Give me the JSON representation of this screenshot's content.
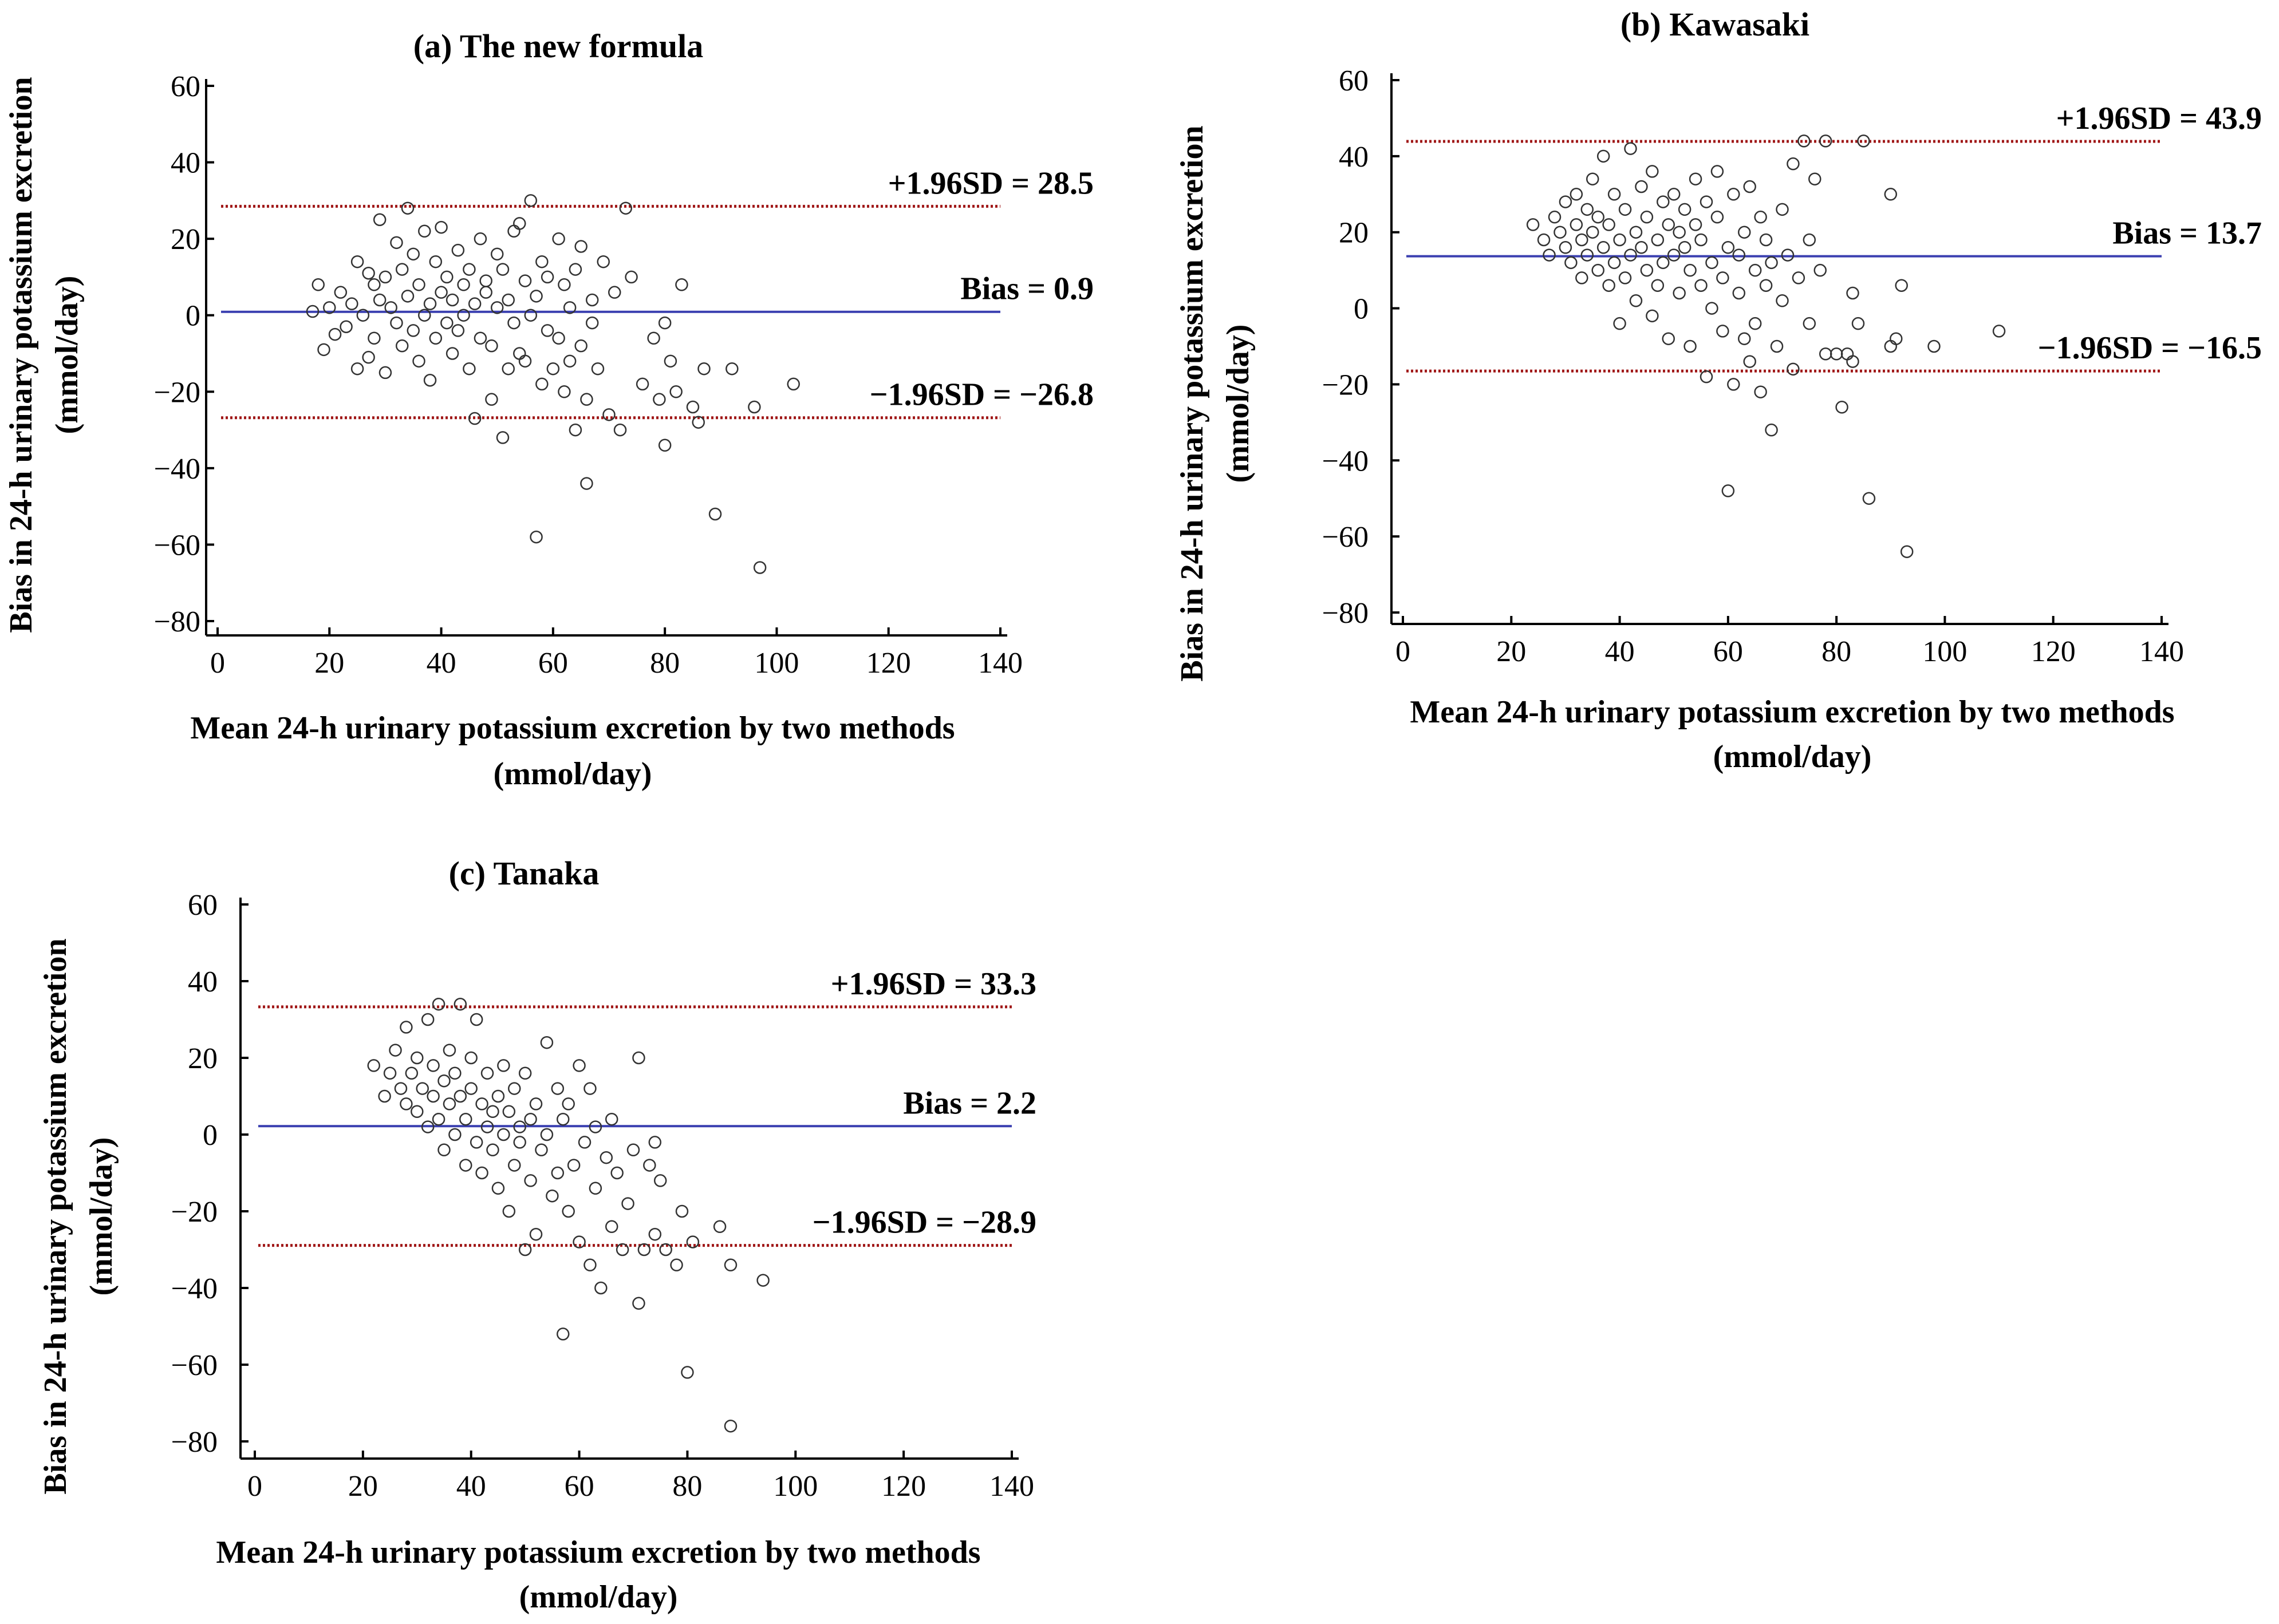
{
  "figure": {
    "x_axis_label_line1": "Mean 24-h urinary potassium excretion by two methods",
    "x_axis_label_line2": "(mmol/day)",
    "y_axis_label_line1": "Bias in 24-h urinary potassium excretion",
    "y_axis_label_line2": "(mmol/day)"
  },
  "colors": {
    "bias_line": "#3a3fb0",
    "limit_line": "#a01818",
    "points": "#333333"
  },
  "chart_data": [
    {
      "id": "a",
      "type": "scatter",
      "title": "(a) The new formula",
      "xlabel": "Mean 24-h urinary potassium excretion by two methods (mmol/day)",
      "ylabel": "Bias in 24-h urinary potassium excretion (mmol/day)",
      "xlim": [
        0,
        140
      ],
      "ylim": [
        -80,
        60
      ],
      "xticks": [
        0,
        20,
        40,
        60,
        80,
        100,
        120,
        140
      ],
      "yticks": [
        60,
        40,
        20,
        0,
        -20,
        -40,
        -60,
        -80
      ],
      "bias": {
        "label": "Bias =",
        "value": 0.9,
        "text": "0.9"
      },
      "upper_limit": {
        "label": "+1.96SD =",
        "value": 28.5,
        "text": "28.5"
      },
      "lower_limit": {
        "label": "−1.96SD =",
        "value": -26.8,
        "text": "−26.8"
      },
      "points_note": "approximate, read off the scatter",
      "points": [
        [
          17,
          1
        ],
        [
          18,
          8
        ],
        [
          19,
          -9
        ],
        [
          20,
          2
        ],
        [
          21,
          -5
        ],
        [
          22,
          6
        ],
        [
          23,
          -3
        ],
        [
          24,
          3
        ],
        [
          25,
          -14
        ],
        [
          25,
          14
        ],
        [
          26,
          0
        ],
        [
          27,
          -11
        ],
        [
          27,
          11
        ],
        [
          28,
          8
        ],
        [
          28,
          -6
        ],
        [
          29,
          25
        ],
        [
          29,
          4
        ],
        [
          30,
          -15
        ],
        [
          30,
          10
        ],
        [
          31,
          2
        ],
        [
          32,
          -2
        ],
        [
          32,
          19
        ],
        [
          33,
          12
        ],
        [
          33,
          -8
        ],
        [
          34,
          28
        ],
        [
          34,
          5
        ],
        [
          35,
          -4
        ],
        [
          35,
          16
        ],
        [
          36,
          8
        ],
        [
          36,
          -12
        ],
        [
          37,
          22
        ],
        [
          37,
          0
        ],
        [
          38,
          3
        ],
        [
          38,
          -17
        ],
        [
          39,
          14
        ],
        [
          39,
          -6
        ],
        [
          40,
          6
        ],
        [
          40,
          23
        ],
        [
          41,
          -2
        ],
        [
          41,
          10
        ],
        [
          42,
          -10
        ],
        [
          42,
          4
        ],
        [
          43,
          17
        ],
        [
          43,
          -4
        ],
        [
          44,
          0
        ],
        [
          44,
          8
        ],
        [
          45,
          12
        ],
        [
          45,
          -14
        ],
        [
          46,
          3
        ],
        [
          46,
          -27
        ],
        [
          47,
          20
        ],
        [
          47,
          -6
        ],
        [
          48,
          6
        ],
        [
          48,
          9
        ],
        [
          49,
          -22
        ],
        [
          49,
          -8
        ],
        [
          50,
          16
        ],
        [
          50,
          2
        ],
        [
          51,
          -32
        ],
        [
          51,
          12
        ],
        [
          52,
          4
        ],
        [
          52,
          -14
        ],
        [
          53,
          22
        ],
        [
          53,
          -2
        ],
        [
          54,
          24
        ],
        [
          54,
          -10
        ],
        [
          55,
          9
        ],
        [
          55,
          -12
        ],
        [
          56,
          30
        ],
        [
          56,
          0
        ],
        [
          57,
          -58
        ],
        [
          57,
          5
        ],
        [
          58,
          14
        ],
        [
          58,
          -18
        ],
        [
          59,
          -4
        ],
        [
          59,
          10
        ],
        [
          60,
          -14
        ],
        [
          61,
          20
        ],
        [
          61,
          -6
        ],
        [
          62,
          8
        ],
        [
          62,
          -20
        ],
        [
          63,
          2
        ],
        [
          63,
          -12
        ],
        [
          64,
          12
        ],
        [
          64,
          -30
        ],
        [
          65,
          -8
        ],
        [
          65,
          18
        ],
        [
          66,
          -44
        ],
        [
          66,
          -22
        ],
        [
          67,
          -2
        ],
        [
          67,
          4
        ],
        [
          68,
          -14
        ],
        [
          69,
          14
        ],
        [
          70,
          -26
        ],
        [
          71,
          6
        ],
        [
          72,
          -30
        ],
        [
          73,
          28
        ],
        [
          74,
          10
        ],
        [
          76,
          -18
        ],
        [
          78,
          -6
        ],
        [
          79,
          -22
        ],
        [
          80,
          -34
        ],
        [
          80,
          -2
        ],
        [
          81,
          -12
        ],
        [
          82,
          -20
        ],
        [
          83,
          8
        ],
        [
          85,
          -24
        ],
        [
          86,
          -28
        ],
        [
          87,
          -14
        ],
        [
          89,
          -52
        ],
        [
          92,
          -14
        ],
        [
          96,
          -24
        ],
        [
          97,
          -66
        ],
        [
          103,
          -18
        ]
      ]
    },
    {
      "id": "b",
      "type": "scatter",
      "title": "(b) Kawasaki",
      "xlabel": "Mean 24-h urinary potassium excretion by two methods (mmol/day)",
      "ylabel": "Bias in 24-h urinary potassium excretion (mmol/day)",
      "xlim": [
        0,
        140
      ],
      "ylim": [
        -80,
        60
      ],
      "xticks": [
        0,
        20,
        40,
        60,
        80,
        100,
        120,
        140
      ],
      "yticks": [
        60,
        40,
        20,
        0,
        -20,
        -40,
        -60,
        -80
      ],
      "bias": {
        "label": "Bias =",
        "value": 13.7,
        "text": "13.7"
      },
      "upper_limit": {
        "label": "+1.96SD =",
        "value": 43.9,
        "text": "43.9"
      },
      "lower_limit": {
        "label": "−1.96SD =",
        "value": -16.5,
        "text": "−16.5"
      },
      "points_note": "approximate, read off the scatter",
      "points": [
        [
          24,
          22
        ],
        [
          26,
          18
        ],
        [
          27,
          14
        ],
        [
          28,
          24
        ],
        [
          29,
          20
        ],
        [
          30,
          16
        ],
        [
          30,
          28
        ],
        [
          31,
          12
        ],
        [
          32,
          22
        ],
        [
          32,
          30
        ],
        [
          33,
          18
        ],
        [
          33,
          8
        ],
        [
          34,
          26
        ],
        [
          34,
          14
        ],
        [
          35,
          34
        ],
        [
          35,
          20
        ],
        [
          36,
          10
        ],
        [
          36,
          24
        ],
        [
          37,
          16
        ],
        [
          37,
          40
        ],
        [
          38,
          6
        ],
        [
          38,
          22
        ],
        [
          39,
          30
        ],
        [
          39,
          12
        ],
        [
          40,
          18
        ],
        [
          40,
          -4
        ],
        [
          41,
          26
        ],
        [
          41,
          8
        ],
        [
          42,
          14
        ],
        [
          42,
          42
        ],
        [
          43,
          20
        ],
        [
          43,
          2
        ],
        [
          44,
          32
        ],
        [
          44,
          16
        ],
        [
          45,
          10
        ],
        [
          45,
          24
        ],
        [
          46,
          -2
        ],
        [
          46,
          36
        ],
        [
          47,
          18
        ],
        [
          47,
          6
        ],
        [
          48,
          28
        ],
        [
          48,
          12
        ],
        [
          49,
          22
        ],
        [
          49,
          -8
        ],
        [
          50,
          14
        ],
        [
          50,
          30
        ],
        [
          51,
          4
        ],
        [
          51,
          20
        ],
        [
          52,
          16
        ],
        [
          52,
          26
        ],
        [
          53,
          10
        ],
        [
          53,
          -10
        ],
        [
          54,
          22
        ],
        [
          54,
          34
        ],
        [
          55,
          6
        ],
        [
          55,
          18
        ],
        [
          56,
          -18
        ],
        [
          56,
          28
        ],
        [
          57,
          12
        ],
        [
          57,
          0
        ],
        [
          58,
          24
        ],
        [
          58,
          36
        ],
        [
          59,
          8
        ],
        [
          59,
          -6
        ],
        [
          60,
          16
        ],
        [
          60,
          -48
        ],
        [
          61,
          30
        ],
        [
          61,
          -20
        ],
        [
          62,
          14
        ],
        [
          62,
          4
        ],
        [
          63,
          20
        ],
        [
          63,
          -8
        ],
        [
          64,
          32
        ],
        [
          64,
          -14
        ],
        [
          65,
          10
        ],
        [
          65,
          -4
        ],
        [
          66,
          24
        ],
        [
          66,
          -22
        ],
        [
          67,
          6
        ],
        [
          67,
          18
        ],
        [
          68,
          -32
        ],
        [
          68,
          12
        ],
        [
          69,
          -10
        ],
        [
          70,
          26
        ],
        [
          70,
          2
        ],
        [
          71,
          14
        ],
        [
          72,
          -16
        ],
        [
          72,
          38
        ],
        [
          73,
          8
        ],
        [
          74,
          44
        ],
        [
          75,
          -4
        ],
        [
          75,
          18
        ],
        [
          76,
          34
        ],
        [
          77,
          10
        ],
        [
          78,
          -12
        ],
        [
          78,
          44
        ],
        [
          80,
          -12
        ],
        [
          81,
          -26
        ],
        [
          82,
          -12
        ],
        [
          83,
          4
        ],
        [
          83,
          -14
        ],
        [
          84,
          -4
        ],
        [
          85,
          44
        ],
        [
          86,
          -50
        ],
        [
          90,
          -10
        ],
        [
          90,
          30
        ],
        [
          91,
          -8
        ],
        [
          92,
          6
        ],
        [
          93,
          -64
        ],
        [
          98,
          -10
        ],
        [
          110,
          -6
        ]
      ]
    },
    {
      "id": "c",
      "type": "scatter",
      "title": "(c) Tanaka",
      "xlabel": "Mean 24-h urinary potassium excretion by two methods (mmol/day)",
      "ylabel": "Bias in 24-h urinary potassium excretion (mmol/day)",
      "xlim": [
        0,
        140
      ],
      "ylim": [
        -80,
        60
      ],
      "xticks": [
        0,
        20,
        40,
        60,
        80,
        100,
        120,
        140
      ],
      "yticks": [
        60,
        40,
        20,
        0,
        -20,
        -40,
        -60,
        -80
      ],
      "bias": {
        "label": "Bias =",
        "value": 2.2,
        "text": "2.2"
      },
      "upper_limit": {
        "label": "+1.96SD =",
        "value": 33.3,
        "text": "33.3"
      },
      "lower_limit": {
        "label": "−1.96SD =",
        "value": -28.9,
        "text": "−28.9"
      },
      "points_note": "approximate, read off the scatter",
      "points": [
        [
          22,
          18
        ],
        [
          24,
          10
        ],
        [
          25,
          16
        ],
        [
          26,
          22
        ],
        [
          27,
          12
        ],
        [
          28,
          8
        ],
        [
          28,
          28
        ],
        [
          29,
          16
        ],
        [
          30,
          20
        ],
        [
          30,
          6
        ],
        [
          31,
          12
        ],
        [
          32,
          30
        ],
        [
          32,
          2
        ],
        [
          33,
          18
        ],
        [
          33,
          10
        ],
        [
          34,
          34
        ],
        [
          34,
          4
        ],
        [
          35,
          14
        ],
        [
          35,
          -4
        ],
        [
          36,
          22
        ],
        [
          36,
          8
        ],
        [
          37,
          0
        ],
        [
          37,
          16
        ],
        [
          38,
          34
        ],
        [
          38,
          10
        ],
        [
          39,
          -8
        ],
        [
          39,
          4
        ],
        [
          40,
          20
        ],
        [
          40,
          12
        ],
        [
          41,
          -2
        ],
        [
          41,
          30
        ],
        [
          42,
          8
        ],
        [
          42,
          -10
        ],
        [
          43,
          16
        ],
        [
          43,
          2
        ],
        [
          44,
          6
        ],
        [
          44,
          -4
        ],
        [
          45,
          10
        ],
        [
          45,
          -14
        ],
        [
          46,
          0
        ],
        [
          46,
          18
        ],
        [
          47,
          6
        ],
        [
          47,
          -20
        ],
        [
          48,
          12
        ],
        [
          48,
          -8
        ],
        [
          49,
          2
        ],
        [
          49,
          -2
        ],
        [
          50,
          16
        ],
        [
          50,
          -30
        ],
        [
          51,
          4
        ],
        [
          51,
          -12
        ],
        [
          52,
          8
        ],
        [
          52,
          -26
        ],
        [
          53,
          -4
        ],
        [
          54,
          24
        ],
        [
          54,
          0
        ],
        [
          55,
          -16
        ],
        [
          56,
          12
        ],
        [
          56,
          -10
        ],
        [
          57,
          -52
        ],
        [
          57,
          4
        ],
        [
          58,
          -20
        ],
        [
          58,
          8
        ],
        [
          59,
          -8
        ],
        [
          60,
          18
        ],
        [
          60,
          -28
        ],
        [
          61,
          -2
        ],
        [
          62,
          12
        ],
        [
          62,
          -34
        ],
        [
          63,
          -14
        ],
        [
          63,
          2
        ],
        [
          64,
          -40
        ],
        [
          65,
          -6
        ],
        [
          66,
          -24
        ],
        [
          66,
          4
        ],
        [
          67,
          -10
        ],
        [
          68,
          -30
        ],
        [
          69,
          -18
        ],
        [
          70,
          -4
        ],
        [
          71,
          20
        ],
        [
          71,
          -44
        ],
        [
          72,
          -30
        ],
        [
          73,
          -8
        ],
        [
          74,
          -26
        ],
        [
          74,
          -2
        ],
        [
          75,
          -12
        ],
        [
          76,
          -30
        ],
        [
          78,
          -34
        ],
        [
          79,
          -20
        ],
        [
          80,
          -62
        ],
        [
          81,
          -28
        ],
        [
          86,
          -24
        ],
        [
          88,
          -34
        ],
        [
          88,
          -76
        ],
        [
          94,
          -38
        ]
      ]
    }
  ]
}
